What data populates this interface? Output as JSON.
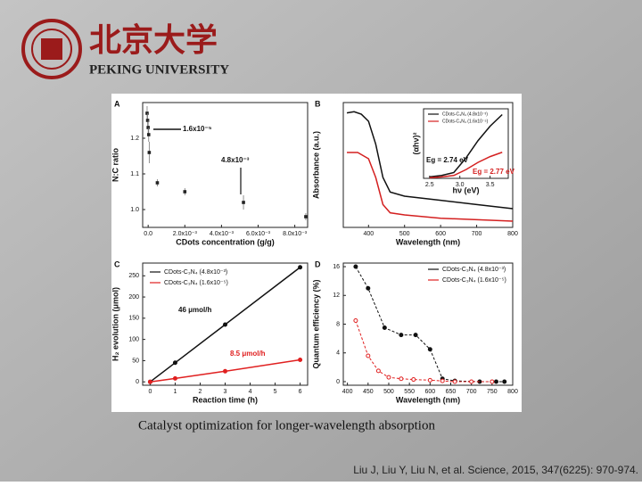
{
  "header": {
    "title": "北京大学",
    "subtitle": "PEKING UNIVERSITY"
  },
  "caption": "Catalyst optimization for longer-wavelength absorption",
  "citation": "Liu J, Liu Y, Liu N, et al. Science, 2015, 347(6225): 970-974.",
  "chart_data": [
    {
      "type": "scatter",
      "label": "A",
      "x_label": "CDots concentration (g/g)",
      "y_label": "N:C ratio",
      "xlim": [
        -0.0003,
        0.0087
      ],
      "ylim": [
        0.95,
        1.3
      ],
      "xticks": [
        {
          "value": 0,
          "label": "0.0"
        },
        {
          "value": 0.002,
          "label": "2.0x10⁻³"
        },
        {
          "value": 0.004,
          "label": "4.0x10⁻³"
        },
        {
          "value": 0.006,
          "label": "6.0x10⁻³"
        },
        {
          "value": 0.008,
          "label": "8.0x10⁻³"
        }
      ],
      "yticks": [
        {
          "value": 1.0,
          "label": "1.0"
        },
        {
          "value": 1.1,
          "label": "1.1"
        },
        {
          "value": 1.2,
          "label": "1.2"
        }
      ],
      "annotations": [
        "1.6x10⁻⁵",
        "4.8x10⁻³"
      ],
      "series": [
        {
          "color": "#222222",
          "x": [
            0,
            0,
            0,
            0,
            0,
            0.0005,
            0.002,
            0.0052,
            0.0086
          ],
          "values": [
            1.27,
            1.25,
            1.23,
            1.21,
            1.16,
            1.075,
            1.05,
            1.02,
            0.98
          ],
          "errors": [
            0.02,
            0.02,
            0.02,
            0.02,
            0.03,
            0.01,
            0.01,
            0.02,
            0.01
          ]
        }
      ]
    },
    {
      "type": "line",
      "label": "B",
      "x_label": "Wavelength (nm)",
      "y_label": "Absorbance (a.u.)",
      "xlim": [
        330,
        800
      ],
      "ylim": [
        0,
        3
      ],
      "xticks": [
        400,
        500,
        600,
        700,
        800
      ],
      "series": [
        {
          "color": "#111111",
          "x": [
            340,
            360,
            380,
            400,
            420,
            440,
            460,
            500,
            600,
            700,
            800
          ],
          "values": [
            2.75,
            2.78,
            2.72,
            2.55,
            2.0,
            1.2,
            0.85,
            0.75,
            0.65,
            0.55,
            0.45
          ]
        },
        {
          "color": "#d42020",
          "x": [
            340,
            370,
            400,
            420,
            440,
            460,
            500,
            600,
            800
          ],
          "values": [
            1.8,
            1.8,
            1.65,
            1.2,
            0.55,
            0.35,
            0.3,
            0.22,
            0.15
          ]
        }
      ]
    },
    {
      "type": "line",
      "x_label": "hν (eV)",
      "y_label": "(αhν)²",
      "xlim": [
        2.4,
        3.8
      ],
      "ylim": [
        0,
        2.4
      ],
      "xticks": [
        2.5,
        {
          "value": 3.0,
          "label": "3.0"
        },
        3.5
      ],
      "annotations": [
        "Eg = 2.74 eV",
        "Eg = 2.77 eV"
      ],
      "series": [
        {
          "name": "CDots-C₃N₄ (4.8x10⁻³)",
          "color": "#111111",
          "x": [
            2.5,
            2.7,
            2.9,
            3.1,
            3.3,
            3.5,
            3.7
          ],
          "values": [
            0.05,
            0.1,
            0.2,
            0.7,
            1.3,
            1.8,
            2.2
          ]
        },
        {
          "name": "CDots-C₃N₄ (1.6x10⁻⁵)",
          "color": "#d42020",
          "x": [
            2.5,
            2.7,
            2.9,
            3.1,
            3.3,
            3.5,
            3.7
          ],
          "values": [
            0.02,
            0.05,
            0.1,
            0.3,
            0.55,
            0.75,
            0.9
          ]
        }
      ]
    },
    {
      "type": "line",
      "label": "C",
      "x_label": "Reaction time (h)",
      "y_label": "H₂ evolution (μmol)",
      "xlim": [
        -0.3,
        6.3
      ],
      "ylim": [
        -8,
        280
      ],
      "xticks": [
        0,
        1,
        2,
        3,
        4,
        5,
        6
      ],
      "yticks": [
        0,
        50,
        100,
        150,
        200,
        250
      ],
      "annotations": [
        "46 μmol/h",
        "8.5 μmol/h"
      ],
      "series": [
        {
          "name": "CDots-C₃N₄ (4.8x10⁻³)",
          "color": "#111111",
          "x": [
            0,
            1,
            3,
            6
          ],
          "values": [
            0,
            45,
            135,
            270
          ]
        },
        {
          "name": "CDots-C₃N₄ (1.6x10⁻⁵)",
          "color": "#e02020",
          "x": [
            0,
            1,
            3,
            6
          ],
          "values": [
            0,
            8,
            25,
            52
          ]
        }
      ]
    },
    {
      "type": "line",
      "label": "D",
      "x_label": "Wavelength (nm)",
      "y_label": "Quantum efficiency (%)",
      "xlim": [
        390,
        800
      ],
      "ylim": [
        -0.5,
        16.5
      ],
      "xticks": [
        400,
        450,
        500,
        550,
        600,
        650,
        700,
        750,
        800
      ],
      "yticks": [
        0,
        4,
        8,
        12,
        16
      ],
      "series": [
        {
          "name": "CDots-C₃N₄ (4.8x10⁻³)",
          "color": "#111111",
          "x": [
            420,
            450,
            490,
            530,
            565,
            600,
            630,
            660,
            720,
            760,
            780
          ],
          "values": [
            16,
            13,
            7.5,
            6.5,
            6.5,
            4.5,
            0.4,
            0.1,
            0,
            0,
            0
          ]
        },
        {
          "name": "CDots-C₃N₄ (1.6x10⁻⁵)",
          "color": "#e02020",
          "x": [
            420,
            450,
            475,
            500,
            530,
            560,
            600,
            630,
            660,
            700,
            750
          ],
          "values": [
            8.5,
            3.6,
            1.5,
            0.6,
            0.4,
            0.3,
            0.2,
            0.1,
            0,
            0,
            0
          ]
        }
      ]
    }
  ]
}
